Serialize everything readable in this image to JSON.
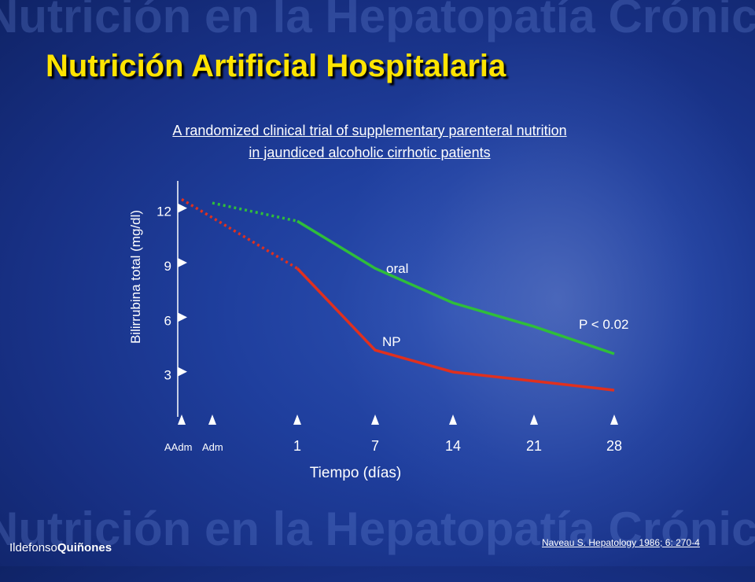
{
  "slide": {
    "watermark_text": "Nutrición en la Hepatopatía Crónica",
    "title": "Nutrición Artificial Hospitalaria",
    "subtitle_line1": "A randomized clinical trial of supplementary parenteral nutrition",
    "subtitle_line2": " in jaundiced alcoholic cirrhotic patients",
    "citation": "Naveau S. Hepatology 1986; 6: 270-4",
    "logo_part1": "Ildefonso",
    "logo_part2": "Quiñones"
  },
  "colors": {
    "title": "#ffe400",
    "oral": "#2fbe3a",
    "np": "#e0301e",
    "axis": "#ffffff"
  },
  "chart_data": {
    "type": "line",
    "xlabel": "Tiempo (días)",
    "ylabel": "Bilirrubina total (mg/dl)",
    "categories": [
      "AAdm",
      "Adm",
      "1",
      "7",
      "14",
      "21",
      "28"
    ],
    "y_ticks": [
      "3",
      "6",
      "9",
      "12"
    ],
    "ylim": [
      0,
      13.5
    ],
    "series": [
      {
        "name": "oral",
        "color": "#2fbe3a",
        "dotted_points": [
          [
            "Adm",
            12.2
          ],
          [
            "1",
            11.2
          ]
        ],
        "solid_points": [
          [
            "1",
            11.2
          ],
          [
            "7",
            8.6
          ],
          [
            "14",
            6.7
          ],
          [
            "21",
            5.4
          ],
          [
            "28",
            3.9
          ]
        ]
      },
      {
        "name": "NP",
        "color": "#e0301e",
        "dotted_points": [
          [
            "AAdm",
            12.4
          ],
          [
            "1",
            8.6
          ]
        ],
        "solid_points": [
          [
            "1",
            8.6
          ],
          [
            "7",
            4.1
          ],
          [
            "14",
            2.9
          ],
          [
            "21",
            2.4
          ],
          [
            "28",
            1.9
          ]
        ]
      }
    ],
    "annotations": [
      {
        "text": "P < 0.02",
        "x": "28",
        "y": 5.0
      }
    ]
  }
}
